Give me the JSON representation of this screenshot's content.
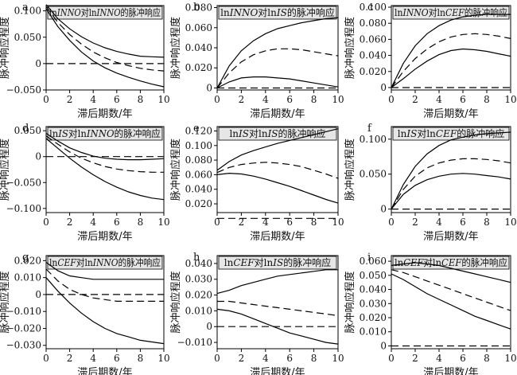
{
  "chart_data": [
    {
      "type": "line",
      "letter": "a",
      "title_parts": [
        [
          "ln",
          false
        ],
        [
          "INNO",
          true
        ],
        [
          "对ln",
          false
        ],
        [
          "INNO",
          true
        ],
        [
          "的脉冲响应",
          false
        ]
      ],
      "xlabel": "滞后期数/年",
      "ylabel": "脉冲响应程度",
      "xlim": [
        0,
        10
      ],
      "ylim": [
        -0.05,
        0.11
      ],
      "xticks": [
        0,
        2,
        4,
        6,
        8,
        10
      ],
      "yticks": [
        -0.05,
        0,
        0.05,
        0.1
      ],
      "yticklabels": [
        "−0.050",
        "0",
        "0.050",
        "0.100"
      ],
      "x": [
        0,
        1,
        2,
        3,
        4,
        5,
        6,
        7,
        8,
        9,
        10
      ],
      "series": [
        {
          "style": "upper",
          "values": [
            0.112,
            0.085,
            0.066,
            0.051,
            0.039,
            0.03,
            0.023,
            0.018,
            0.014,
            0.013,
            0.012
          ]
        },
        {
          "style": "median",
          "values": [
            0.108,
            0.078,
            0.055,
            0.037,
            0.022,
            0.011,
            0.002,
            -0.004,
            -0.009,
            -0.012,
            -0.014
          ]
        },
        {
          "style": "lower",
          "values": [
            0.104,
            0.07,
            0.044,
            0.022,
            0.005,
            -0.008,
            -0.018,
            -0.026,
            -0.033,
            -0.039,
            -0.044
          ]
        },
        {
          "style": "zero",
          "values": [
            0,
            0,
            0,
            0,
            0,
            0,
            0,
            0,
            0,
            0,
            0
          ]
        }
      ]
    },
    {
      "type": "line",
      "letter": "b",
      "title_parts": [
        [
          "ln",
          false
        ],
        [
          "INNO",
          true
        ],
        [
          "对ln",
          false
        ],
        [
          "IS",
          true
        ],
        [
          "的脉冲响应",
          false
        ]
      ],
      "xlabel": "滞后期数/年",
      "ylabel": "脉冲响应程度",
      "xlim": [
        0,
        10
      ],
      "ylim": [
        -0.002,
        0.082
      ],
      "xticks": [
        0,
        2,
        4,
        6,
        8,
        10
      ],
      "yticks": [
        0,
        0.02,
        0.04,
        0.06,
        0.08
      ],
      "yticklabels": [
        "0",
        "0.020",
        "0.040",
        "0.060",
        "0.080"
      ],
      "x": [
        0,
        1,
        2,
        3,
        4,
        5,
        6,
        7,
        8,
        9,
        10
      ],
      "series": [
        {
          "style": "upper",
          "values": [
            0,
            0.022,
            0.037,
            0.047,
            0.054,
            0.059,
            0.062,
            0.065,
            0.067,
            0.069,
            0.07
          ]
        },
        {
          "style": "median",
          "values": [
            0,
            0.015,
            0.026,
            0.033,
            0.037,
            0.039,
            0.039,
            0.038,
            0.036,
            0.034,
            0.032
          ]
        },
        {
          "style": "lower",
          "values": [
            0,
            0.006,
            0.01,
            0.011,
            0.011,
            0.01,
            0.009,
            0.007,
            0.005,
            0.003,
            0.001
          ]
        },
        {
          "style": "zero",
          "values": [
            0,
            0,
            0,
            0,
            0,
            0,
            0,
            0,
            0,
            0,
            0
          ]
        }
      ]
    },
    {
      "type": "line",
      "letter": "c",
      "title_parts": [
        [
          "ln",
          false
        ],
        [
          "INNO",
          true
        ],
        [
          "对ln",
          false
        ],
        [
          "CEF",
          true
        ],
        [
          "的脉冲响应",
          false
        ]
      ],
      "xlabel": "滞后期数/年",
      "ylabel": "脉冲响应程度",
      "xlim": [
        0,
        10
      ],
      "ylim": [
        -0.003,
        0.102
      ],
      "xticks": [
        0,
        2,
        4,
        6,
        8,
        10
      ],
      "yticks": [
        0,
        0.02,
        0.04,
        0.06,
        0.08,
        0.1
      ],
      "yticklabels": [
        "0",
        "0.020",
        "0.040",
        "0.060",
        "0.080",
        "0.100"
      ],
      "x": [
        0,
        1,
        2,
        3,
        4,
        5,
        6,
        7,
        8,
        9,
        10
      ],
      "series": [
        {
          "style": "upper",
          "values": [
            0,
            0.03,
            0.052,
            0.067,
            0.077,
            0.084,
            0.088,
            0.09,
            0.091,
            0.091,
            0.091
          ]
        },
        {
          "style": "median",
          "values": [
            0,
            0.02,
            0.036,
            0.048,
            0.057,
            0.063,
            0.066,
            0.067,
            0.066,
            0.064,
            0.061
          ]
        },
        {
          "style": "lower",
          "values": [
            0,
            0.011,
            0.023,
            0.033,
            0.041,
            0.046,
            0.048,
            0.047,
            0.045,
            0.042,
            0.039
          ]
        },
        {
          "style": "zero",
          "values": [
            0,
            0,
            0,
            0,
            0,
            0,
            0,
            0,
            0,
            0,
            0
          ]
        }
      ]
    },
    {
      "type": "line",
      "letter": "d",
      "title_parts": [
        [
          "ln",
          false
        ],
        [
          "IS",
          true
        ],
        [
          "对ln",
          false
        ],
        [
          "INNO",
          true
        ],
        [
          "的脉冲响应",
          false
        ]
      ],
      "xlabel": "滞后期数/年",
      "ylabel": "脉冲响应程度",
      "xlim": [
        0,
        10
      ],
      "ylim": [
        -0.108,
        0.058
      ],
      "xticks": [
        0,
        2,
        4,
        6,
        8,
        10
      ],
      "yticks": [
        -0.1,
        -0.05,
        0,
        0.05
      ],
      "yticklabels": [
        "−0.100",
        "−0.050",
        "0",
        "0.050"
      ],
      "x": [
        0,
        1,
        2,
        3,
        4,
        5,
        6,
        7,
        8,
        9,
        10
      ],
      "series": [
        {
          "style": "upper",
          "values": [
            0.045,
            0.03,
            0.017,
            0.008,
            0.001,
            -0.003,
            -0.005,
            -0.006,
            -0.006,
            -0.005,
            -0.004
          ]
        },
        {
          "style": "median",
          "values": [
            0.04,
            0.024,
            0.009,
            -0.003,
            -0.012,
            -0.019,
            -0.024,
            -0.027,
            -0.029,
            -0.03,
            -0.03
          ]
        },
        {
          "style": "lower",
          "values": [
            0.035,
            0.016,
            -0.003,
            -0.02,
            -0.035,
            -0.048,
            -0.059,
            -0.068,
            -0.075,
            -0.08,
            -0.083
          ]
        },
        {
          "style": "zero",
          "values": [
            0,
            0,
            0,
            0,
            0,
            0,
            0,
            0,
            0,
            0,
            0
          ]
        }
      ]
    },
    {
      "type": "line",
      "letter": "e",
      "title_parts": [
        [
          "ln",
          false
        ],
        [
          "IS",
          true
        ],
        [
          "对ln",
          false
        ],
        [
          "IS",
          true
        ],
        [
          "的脉冲响应",
          false
        ]
      ],
      "xlabel": "滞后期数/年",
      "ylabel": "脉冲响应程度",
      "xlim": [
        0,
        10
      ],
      "ylim": [
        0.008,
        0.126
      ],
      "xticks": [
        0,
        2,
        4,
        6,
        8,
        10
      ],
      "yticks": [
        0.02,
        0.04,
        0.06,
        0.08,
        0.1,
        0.12
      ],
      "yticklabels": [
        "0.020",
        "0.040",
        "0.060",
        "0.080",
        "0.100",
        "0.120"
      ],
      "x": [
        0,
        1,
        2,
        3,
        4,
        5,
        6,
        7,
        8,
        9,
        10
      ],
      "series": [
        {
          "style": "upper",
          "values": [
            0.066,
            0.078,
            0.087,
            0.093,
            0.098,
            0.103,
            0.107,
            0.111,
            0.115,
            0.119,
            0.123
          ]
        },
        {
          "style": "median",
          "values": [
            0.063,
            0.07,
            0.074,
            0.076,
            0.077,
            0.076,
            0.074,
            0.071,
            0.066,
            0.061,
            0.055
          ]
        },
        {
          "style": "lower",
          "values": [
            0.06,
            0.062,
            0.061,
            0.058,
            0.054,
            0.049,
            0.044,
            0.038,
            0.032,
            0.026,
            0.021
          ]
        },
        {
          "style": "zero",
          "values": [
            0,
            0,
            0,
            0,
            0,
            0,
            0,
            0,
            0,
            0,
            0
          ]
        }
      ]
    },
    {
      "type": "line",
      "letter": "f",
      "title_parts": [
        [
          "ln",
          false
        ],
        [
          "IS",
          true
        ],
        [
          "对ln",
          false
        ],
        [
          "CEF",
          true
        ],
        [
          "的脉冲响应",
          false
        ]
      ],
      "xlabel": "滞后期数/年",
      "ylabel": "脉冲响应程度",
      "xlim": [
        0,
        10
      ],
      "ylim": [
        -0.005,
        0.118
      ],
      "xticks": [
        0,
        2,
        4,
        6,
        8,
        10
      ],
      "yticks": [
        0,
        0.05,
        0.1
      ],
      "yticklabels": [
        "0",
        "0.050",
        "0.100"
      ],
      "x": [
        0,
        1,
        2,
        3,
        4,
        5,
        6,
        7,
        8,
        9,
        10
      ],
      "series": [
        {
          "style": "upper",
          "values": [
            0,
            0.035,
            0.061,
            0.079,
            0.091,
            0.099,
            0.103,
            0.106,
            0.108,
            0.109,
            0.11
          ]
        },
        {
          "style": "median",
          "values": [
            0,
            0.028,
            0.047,
            0.059,
            0.066,
            0.07,
            0.072,
            0.072,
            0.071,
            0.069,
            0.066
          ]
        },
        {
          "style": "lower",
          "values": [
            0,
            0.021,
            0.034,
            0.042,
            0.047,
            0.05,
            0.051,
            0.05,
            0.048,
            0.046,
            0.043
          ]
        },
        {
          "style": "zero",
          "values": [
            0,
            0,
            0,
            0,
            0,
            0,
            0,
            0,
            0,
            0,
            0
          ]
        }
      ]
    },
    {
      "type": "line",
      "letter": "g",
      "title_parts": [
        [
          "ln",
          false
        ],
        [
          "CEF",
          true
        ],
        [
          "对ln",
          false
        ],
        [
          "INNO",
          true
        ],
        [
          "的脉冲响应",
          false
        ]
      ],
      "xlabel": "滞后期数/年",
      "ylabel": "脉冲响应程度",
      "xlim": [
        0,
        10
      ],
      "ylim": [
        -0.032,
        0.023
      ],
      "xticks": [
        0,
        2,
        4,
        6,
        8,
        10
      ],
      "yticks": [
        -0.03,
        -0.02,
        -0.01,
        0,
        0.01,
        0.02
      ],
      "yticklabels": [
        "−0.030",
        "−0.020",
        "−0.010",
        "0",
        "0.010",
        "0.020"
      ],
      "x": [
        0,
        1,
        2,
        3,
        4,
        5,
        6,
        7,
        8,
        9,
        10
      ],
      "series": [
        {
          "style": "upper",
          "values": [
            0.019,
            0.014,
            0.011,
            0.01,
            0.009,
            0.009,
            0.009,
            0.009,
            0.009,
            0.009,
            0.009
          ]
        },
        {
          "style": "median",
          "values": [
            0.015,
            0.008,
            0.003,
            0.0,
            -0.002,
            -0.003,
            -0.004,
            -0.004,
            -0.004,
            -0.004,
            -0.004
          ]
        },
        {
          "style": "lower",
          "values": [
            0.01,
            0.002,
            -0.005,
            -0.011,
            -0.016,
            -0.02,
            -0.023,
            -0.025,
            -0.027,
            -0.028,
            -0.029
          ]
        },
        {
          "style": "zero",
          "values": [
            0,
            0,
            0,
            0,
            0,
            0,
            0,
            0,
            0,
            0,
            0
          ]
        }
      ]
    },
    {
      "type": "line",
      "letter": "h",
      "title_parts": [
        [
          "ln",
          false
        ],
        [
          "CEF",
          true
        ],
        [
          "对ln",
          false
        ],
        [
          "IS",
          true
        ],
        [
          "的脉冲响应",
          false
        ]
      ],
      "xlabel": "滞后期数/年",
      "ylabel": "脉冲响应程度",
      "xlim": [
        0,
        10
      ],
      "ylim": [
        -0.014,
        0.045
      ],
      "xticks": [
        0,
        2,
        4,
        6,
        8,
        10
      ],
      "yticks": [
        -0.01,
        0,
        0.01,
        0.02,
        0.03,
        0.04
      ],
      "yticklabels": [
        "−0.010",
        "0",
        "0.010",
        "0.020",
        "0.030",
        "0.040"
      ],
      "x": [
        0,
        1,
        2,
        3,
        4,
        5,
        6,
        7,
        8,
        9,
        10
      ],
      "series": [
        {
          "style": "upper",
          "values": [
            0.021,
            0.023,
            0.026,
            0.028,
            0.03,
            0.032,
            0.033,
            0.034,
            0.035,
            0.036,
            0.036
          ]
        },
        {
          "style": "median",
          "values": [
            0.016,
            0.016,
            0.015,
            0.014,
            0.013,
            0.012,
            0.011,
            0.01,
            0.009,
            0.008,
            0.007
          ]
        },
        {
          "style": "lower",
          "values": [
            0.011,
            0.01,
            0.008,
            0.005,
            0.002,
            -0.001,
            -0.004,
            -0.006,
            -0.008,
            -0.01,
            -0.011
          ]
        },
        {
          "style": "zero",
          "values": [
            0,
            0,
            0,
            0,
            0,
            0,
            0,
            0,
            0,
            0,
            0
          ]
        }
      ]
    },
    {
      "type": "line",
      "letter": "i",
      "title_parts": [
        [
          "ln",
          false
        ],
        [
          "CEF",
          true
        ],
        [
          "对ln",
          false
        ],
        [
          "CEF",
          true
        ],
        [
          "的脉冲响应",
          false
        ]
      ],
      "xlabel": "滞后期数/年",
      "ylabel": "脉冲响应程度",
      "xlim": [
        0,
        10
      ],
      "ylim": [
        -0.002,
        0.064
      ],
      "xticks": [
        0,
        2,
        4,
        6,
        8,
        10
      ],
      "yticks": [
        0,
        0.01,
        0.02,
        0.03,
        0.04,
        0.05,
        0.06
      ],
      "yticklabels": [
        "0",
        "0.010",
        "0.020",
        "0.030",
        "0.040",
        "0.050",
        "0.060"
      ],
      "x": [
        0,
        1,
        2,
        3,
        4,
        5,
        6,
        7,
        8,
        9,
        10
      ],
      "series": [
        {
          "style": "upper",
          "values": [
            0.057,
            0.058,
            0.059,
            0.058,
            0.057,
            0.055,
            0.053,
            0.051,
            0.049,
            0.047,
            0.045
          ]
        },
        {
          "style": "median",
          "values": [
            0.054,
            0.052,
            0.049,
            0.046,
            0.043,
            0.04,
            0.037,
            0.034,
            0.031,
            0.028,
            0.025
          ]
        },
        {
          "style": "lower",
          "values": [
            0.051,
            0.047,
            0.042,
            0.037,
            0.033,
            0.029,
            0.025,
            0.021,
            0.018,
            0.015,
            0.012
          ]
        },
        {
          "style": "zero",
          "values": [
            0,
            0,
            0,
            0,
            0,
            0,
            0,
            0,
            0,
            0,
            0
          ]
        }
      ]
    }
  ]
}
